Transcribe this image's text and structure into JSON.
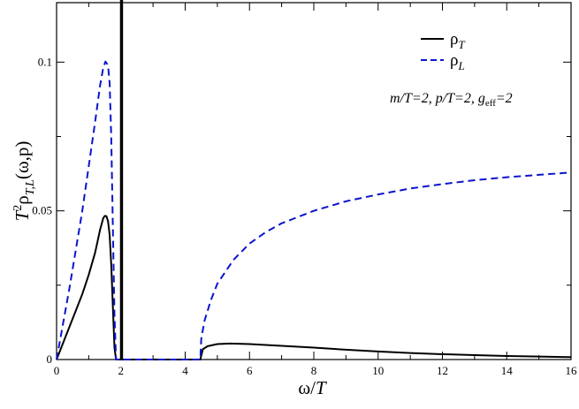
{
  "chart_data": {
    "type": "line",
    "title": "",
    "xlabel": {
      "main": "ω/",
      "var": "T"
    },
    "ylabel": {
      "pre": "T",
      "sup": "2",
      "rho": "ρ",
      "sub": "T,L",
      "post": "(ω,p)"
    },
    "xlim": [
      0,
      16
    ],
    "ylim": [
      0,
      0.12
    ],
    "x_ticks": [
      0,
      2,
      4,
      6,
      8,
      10,
      12,
      14,
      16
    ],
    "x_tick_labels": [
      "0",
      "2",
      "4",
      "6",
      "8",
      "10",
      "12",
      "14",
      "16"
    ],
    "y_ticks": [
      0,
      0.05,
      0.1
    ],
    "y_tick_labels": [
      "0",
      "0.05",
      "0.1"
    ],
    "grid": false,
    "legend_position": "top-right",
    "annotation": {
      "m": "m/T=2,",
      "p": "p/T=2,",
      "g": "g",
      "g_sub": "eff",
      "g_val": "=2"
    },
    "series": [
      {
        "name": "ρ_T",
        "legend": {
          "rho": "ρ",
          "sub": "T"
        },
        "color": "#000000",
        "style": "solid",
        "points": [
          [
            0,
            0
          ],
          [
            0.2,
            0.0055
          ],
          [
            0.4,
            0.011
          ],
          [
            0.6,
            0.0165
          ],
          [
            0.8,
            0.022
          ],
          [
            1.0,
            0.0285
          ],
          [
            1.2,
            0.036
          ],
          [
            1.35,
            0.0435
          ],
          [
            1.45,
            0.0475
          ],
          [
            1.5,
            0.0483
          ],
          [
            1.55,
            0.0482
          ],
          [
            1.6,
            0.0465
          ],
          [
            1.65,
            0.042
          ],
          [
            1.7,
            0.032
          ],
          [
            1.75,
            0.018
          ],
          [
            1.8,
            0.004
          ],
          [
            1.85,
            0
          ],
          [
            2.0,
            0
          ],
          [
            2.0,
            0.121
          ],
          [
            2.04,
            0.121
          ],
          [
            2.04,
            0
          ],
          [
            4.47,
            0
          ],
          [
            4.55,
            0.0035
          ],
          [
            4.7,
            0.0045
          ],
          [
            5.0,
            0.0052
          ],
          [
            5.4,
            0.0054
          ],
          [
            6.0,
            0.0052
          ],
          [
            7.0,
            0.0046
          ],
          [
            8.0,
            0.004
          ],
          [
            9.0,
            0.0033
          ],
          [
            10.0,
            0.0027
          ],
          [
            11.0,
            0.0022
          ],
          [
            12.0,
            0.0018
          ],
          [
            13.0,
            0.0015
          ],
          [
            14.0,
            0.0012
          ],
          [
            15.0,
            0.001
          ],
          [
            16.0,
            0.0008
          ]
        ]
      },
      {
        "name": "ρ_L",
        "legend": {
          "rho": "ρ",
          "sub": "L"
        },
        "color": "#0a14cc",
        "style": "dashed",
        "points": [
          [
            0,
            0
          ],
          [
            0.2,
            0.012
          ],
          [
            0.4,
            0.024
          ],
          [
            0.6,
            0.037
          ],
          [
            0.8,
            0.05
          ],
          [
            1.0,
            0.065
          ],
          [
            1.2,
            0.08
          ],
          [
            1.35,
            0.092
          ],
          [
            1.45,
            0.098
          ],
          [
            1.52,
            0.1002
          ],
          [
            1.6,
            0.099
          ],
          [
            1.65,
            0.093
          ],
          [
            1.7,
            0.075
          ],
          [
            1.75,
            0.045
          ],
          [
            1.8,
            0.015
          ],
          [
            1.85,
            0
          ],
          [
            4.47,
            0
          ],
          [
            4.5,
            0.007
          ],
          [
            4.6,
            0.013
          ],
          [
            4.8,
            0.02
          ],
          [
            5.0,
            0.0255
          ],
          [
            5.5,
            0.0335
          ],
          [
            6.0,
            0.039
          ],
          [
            6.5,
            0.0428
          ],
          [
            7.0,
            0.0458
          ],
          [
            8.0,
            0.05
          ],
          [
            9.0,
            0.0532
          ],
          [
            10.0,
            0.0555
          ],
          [
            11.0,
            0.0575
          ],
          [
            12.0,
            0.059
          ],
          [
            13.0,
            0.0603
          ],
          [
            14.0,
            0.0613
          ],
          [
            15.0,
            0.0621
          ],
          [
            16.0,
            0.0629
          ]
        ]
      }
    ]
  }
}
